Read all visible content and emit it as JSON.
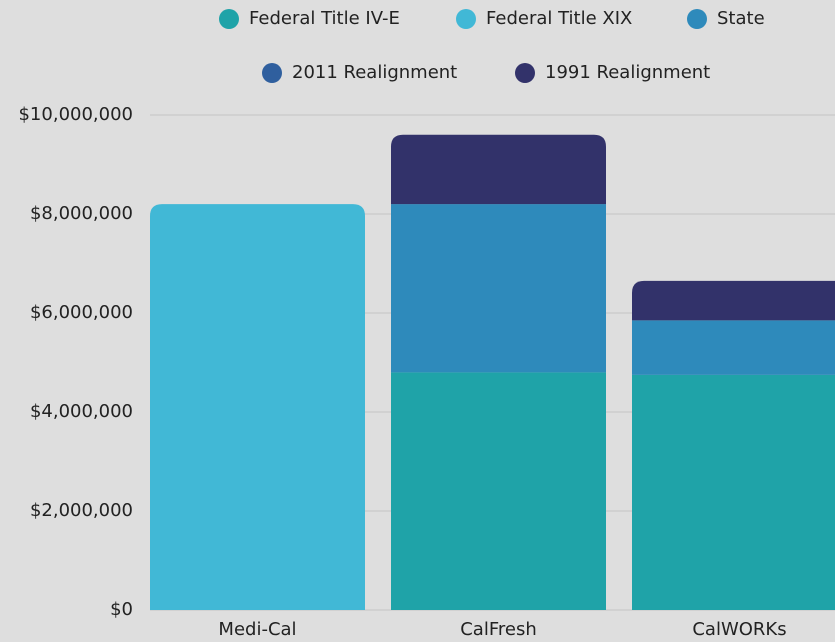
{
  "chart_data": {
    "type": "stacked_bar",
    "categories": [
      "Medi-Cal",
      "CalFresh",
      "CalWORKs"
    ],
    "series": [
      {
        "name": "Federal Title IV-E",
        "color": "#1fa3a8",
        "values": [
          0,
          4800000,
          4750000
        ]
      },
      {
        "name": "Federal Title XIX",
        "color": "#41b8d6",
        "values": [
          8200000,
          0,
          0
        ]
      },
      {
        "name": "State",
        "color": "#2e8abb",
        "values": [
          0,
          3400000,
          1100000
        ]
      },
      {
        "name": "2011 Realignment",
        "color": "#2f5f9e",
        "values": [
          0,
          0,
          0
        ]
      },
      {
        "name": "1991 Realignment",
        "color": "#32326a",
        "values": [
          0,
          1400000,
          800000
        ]
      }
    ],
    "ylim": [
      0,
      10000000
    ],
    "yticks": [
      {
        "value": 0,
        "label": "$0"
      },
      {
        "value": 2000000,
        "label": "$2,000,000"
      },
      {
        "value": 4000000,
        "label": "$4,000,000"
      },
      {
        "value": 6000000,
        "label": "$6,000,000"
      },
      {
        "value": 8000000,
        "label": "$8,000,000"
      },
      {
        "value": 10000000,
        "label": "$10,000,000"
      }
    ],
    "grid": true
  }
}
